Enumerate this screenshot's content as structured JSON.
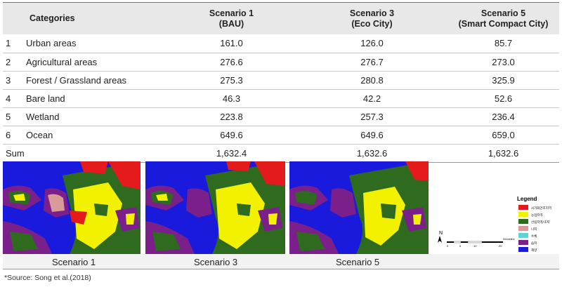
{
  "table": {
    "headers": {
      "categories": "Categories",
      "s1_line1": "Scenario 1",
      "s1_line2": "(BAU)",
      "s3_line1": "Scenario 3",
      "s3_line2": "(Eco City)",
      "s5_line1": "Scenario 5",
      "s5_line2": "(Smart Compact City)"
    },
    "rows": [
      {
        "num": "1",
        "label": "Urban areas",
        "s1": "161.0",
        "s3": "126.0",
        "s5": "85.7"
      },
      {
        "num": "2",
        "label": "Agricultural areas",
        "s1": "276.6",
        "s3": "276.7",
        "s5": "273.0"
      },
      {
        "num": "3",
        "label": "Forest / Grassland areas",
        "s1": "275.3",
        "s3": "280.8",
        "s5": "325.9"
      },
      {
        "num": "4",
        "label": "Bare land",
        "s1": "46.3",
        "s3": "42.2",
        "s5": "52.6"
      },
      {
        "num": "5",
        "label": "Wetland",
        "s1": "223.8",
        "s3": "257.3",
        "s5": "236.4"
      },
      {
        "num": "6",
        "label": "Ocean",
        "s1": "649.6",
        "s3": "649.6",
        "s5": "659.0"
      }
    ],
    "sum": {
      "label": "Sum",
      "s1": "1,632.4",
      "s3": "1,632.6",
      "s5": "1,632.6"
    }
  },
  "maps": {
    "captions": [
      "Scenario 1",
      "Scenario 3",
      "Scenario 5"
    ],
    "legend_title": "Legend",
    "legend_items": [
      {
        "label": "시가화건조지역",
        "color": "#e41a1c"
      },
      {
        "label": "농업지역",
        "color": "#f2f200"
      },
      {
        "label": "산림지역/초지",
        "color": "#2e6b1f"
      },
      {
        "label": "나지",
        "color": "#d99a9a"
      },
      {
        "label": "수체",
        "color": "#5fd3d3"
      },
      {
        "label": "습지",
        "color": "#7b1f8a"
      },
      {
        "label": "해양",
        "color": "#1a1adc"
      }
    ],
    "north_label": "N",
    "scale_ticks": [
      "0",
      "5",
      "10",
      "20"
    ],
    "scale_unit": "Kilometers"
  },
  "source": "*Source: Song et al.(2018)"
}
